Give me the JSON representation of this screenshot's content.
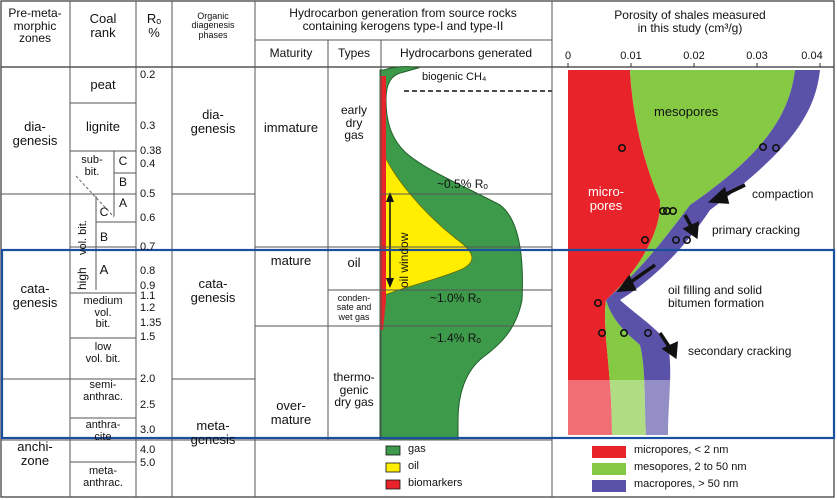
{
  "headers": {
    "zones": "Pre-meta-\nmorphic\nzones",
    "coal_rank": "Coal\nrank",
    "ro": "Rₒ\n%",
    "diagenesis": "Organic\ndiagenesis\nphases",
    "hc_title": "Hydrocarbon generation from source rocks\ncontaining kerogens type-I and type-II",
    "maturity": "Maturity",
    "types": "Types",
    "generated": "Hydrocarbons generated",
    "porosity_title": "Porosity of shales measured\nin this study (cm³/g)"
  },
  "zones": [
    "dia-\ngenesis",
    "cata-\ngenesis",
    "anchi-\nzone"
  ],
  "coal_ranks": [
    "peat",
    "lignite",
    "sub-\nbit.",
    "C",
    "B",
    "A",
    "vol. bit.",
    "C",
    "B",
    "high",
    "A",
    "medium\nvol.\nbit.",
    "low\nvol. bit.",
    "semi-\nanthrac.",
    "anthra-\ncite",
    "meta-\nanthrac."
  ],
  "ro_values": [
    "0.2",
    "0.3",
    "0.38",
    "0.4",
    "0.5",
    "0.6",
    "0.7",
    "0.8",
    "0.9",
    "1.1",
    "1.2",
    "1.35",
    "1.5",
    "2.0",
    "2.5",
    "3.0",
    "4.0",
    "5.0"
  ],
  "phases": [
    "dia-\ngenesis",
    "cata-\ngenesis",
    "meta-\ngenesis"
  ],
  "maturity": [
    "immature",
    "mature",
    "over-\nmature"
  ],
  "types": [
    "early\ndry\ngas",
    "oil",
    "conden-\nsate and\nwet gas",
    "thermo-\ngenic\ndry gas"
  ],
  "generation_labels": {
    "biogenic": "biogenic CH₄",
    "ro05": "~0.5% Rₒ",
    "ro10": "~1.0% Rₒ",
    "ro14": "~1.4% Rₒ",
    "oil_window": "oil window"
  },
  "porosity_axis": [
    "0",
    "0.01",
    "0.02",
    "0.03",
    "0.04"
  ],
  "porosity_labels": {
    "mesopores": "mesopores",
    "micropores": "micro-\npores",
    "compaction": "compaction",
    "primary": "primary cracking",
    "filling": "oil filling and solid\nbitumen formation",
    "secondary": "secondary cracking"
  },
  "gen_legend": [
    {
      "label": "gas",
      "color": "#3a9a4a"
    },
    {
      "label": "oil",
      "color": "#ffee00"
    },
    {
      "label": "biomarkers",
      "color": "#e8232a"
    }
  ],
  "pore_legend": [
    {
      "label": "micropores, < 2 nm",
      "color": "#e8232a"
    },
    {
      "label": "mesopores, 2 to 50 nm",
      "color": "#88cc44"
    },
    {
      "label": "macropores, > 50 nm",
      "color": "#5a52a8"
    }
  ]
}
